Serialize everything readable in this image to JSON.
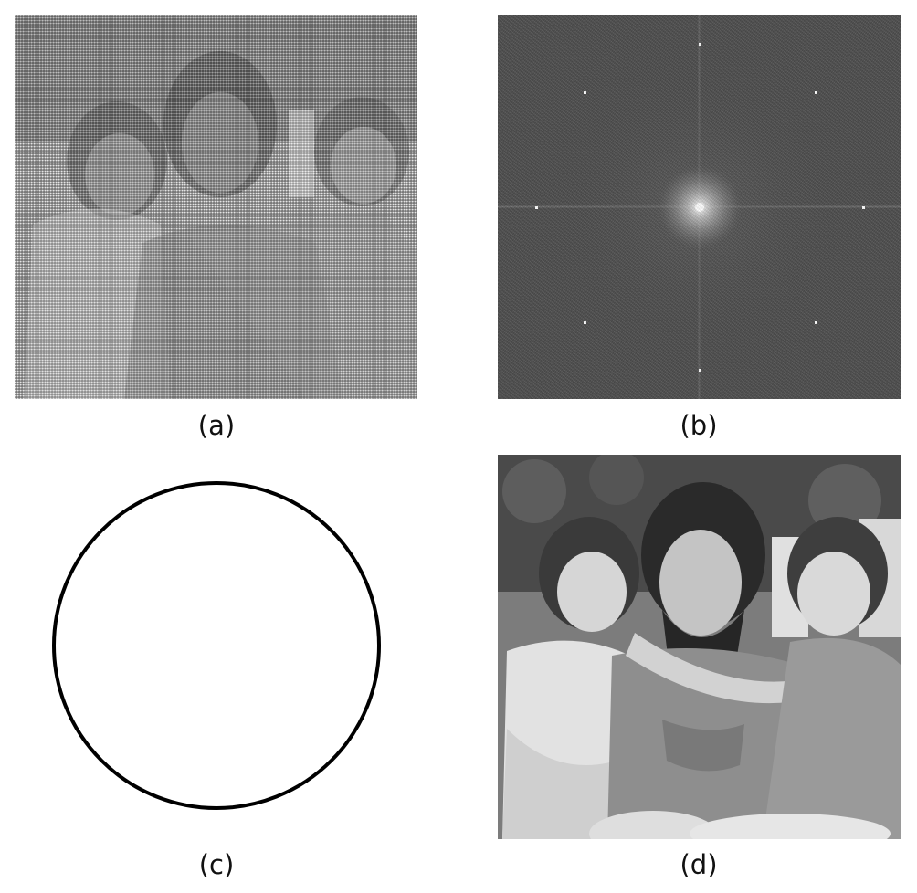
{
  "panels": [
    {
      "id": "a",
      "label": "(a)",
      "content": "noisy-halftone-photo"
    },
    {
      "id": "b",
      "label": "(b)",
      "content": "fourier-spectrum"
    },
    {
      "id": "c",
      "label": "(c)",
      "content": "circle-mask"
    },
    {
      "id": "d",
      "label": "(d)",
      "content": "restored-photo"
    }
  ],
  "colors": {
    "background": "#ffffff",
    "label_text": "#111111",
    "circle_stroke": "#000000",
    "spectrum_background": "#4f4f4f",
    "spectrum_peak": "#ffffff"
  }
}
